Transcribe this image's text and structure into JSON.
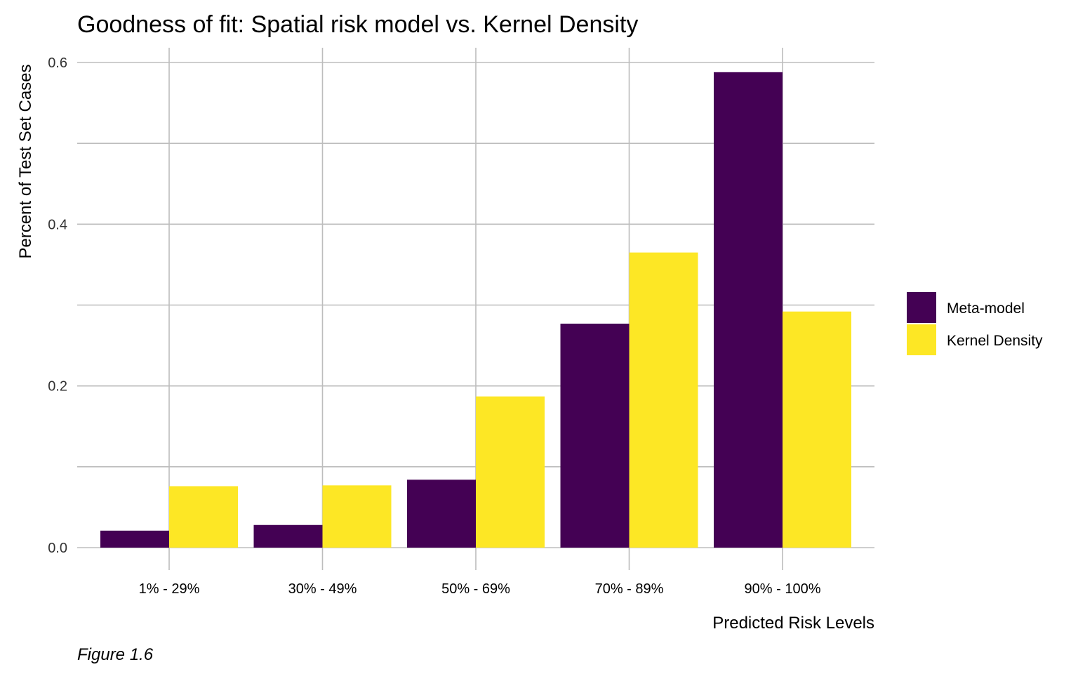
{
  "chart_data": {
    "type": "bar",
    "title": "Goodness of fit: Spatial risk model vs. Kernel Density",
    "xlabel": "Predicted Risk Levels",
    "ylabel": "Percent of Test Set Cases",
    "categories": [
      "1% - 29%",
      "30% - 49%",
      "50% - 69%",
      "70% - 89%",
      "90% - 100%"
    ],
    "series": [
      {
        "name": "Meta-model",
        "color": "#440154",
        "values": [
          0.021,
          0.028,
          0.084,
          0.277,
          0.588
        ]
      },
      {
        "name": "Kernel Density",
        "color": "#FDE725",
        "values": [
          0.076,
          0.077,
          0.187,
          0.365,
          0.292
        ]
      }
    ],
    "ylim": [
      0,
      0.6
    ],
    "yticks": [
      0.0,
      0.2,
      0.4,
      0.6
    ],
    "ytick_labels": [
      "0.0",
      "0.2",
      "0.4",
      "0.6"
    ],
    "grid": true,
    "legend_position": "right",
    "caption": "Figure 1.6"
  }
}
